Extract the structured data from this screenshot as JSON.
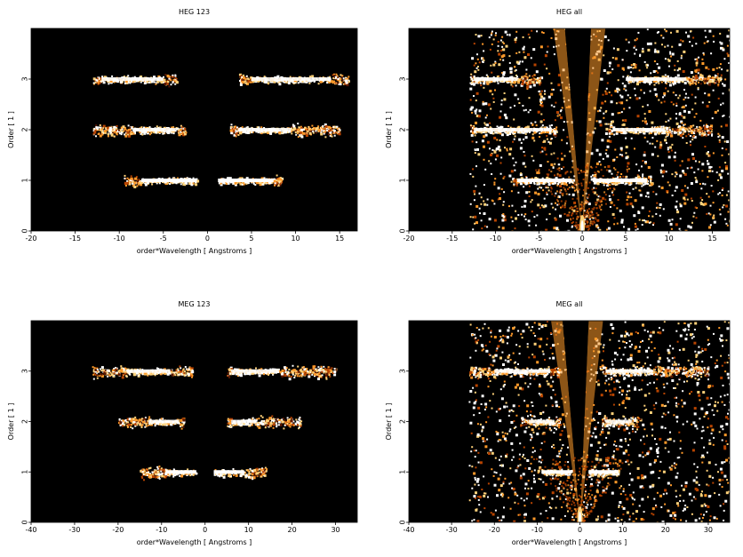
{
  "chart_data": [
    {
      "type": "heatmap",
      "title": "HEG 123",
      "xlabel": "order*Wavelength [ Angstroms ]",
      "ylabel": "Order [ 1 ]",
      "xlim": [
        -20,
        17
      ],
      "ylim": [
        0,
        4
      ],
      "xticks": [
        -20,
        -15,
        -10,
        -5,
        0,
        5,
        10,
        15
      ],
      "yticks": [
        0,
        1,
        2,
        3
      ],
      "background": "#000000",
      "bands": [
        {
          "order": 1,
          "x_start": -9.5,
          "x_end": -1.2,
          "core_start": -7.5,
          "core_end": -1.2
        },
        {
          "order": 1,
          "x_start": 1.2,
          "x_end": 8.5,
          "core_start": 1.2,
          "core_end": 7.5
        },
        {
          "order": 2,
          "x_start": -13,
          "x_end": -2.5,
          "core_start": -8.5,
          "core_end": -3.5
        },
        {
          "order": 2,
          "x_start": 2.5,
          "x_end": 15,
          "core_start": 3.5,
          "core_end": 9.5
        },
        {
          "order": 3,
          "x_start": -13,
          "x_end": -3.5,
          "core_start": -12,
          "core_end": -5
        },
        {
          "order": 3,
          "x_start": 3.5,
          "x_end": 16,
          "core_start": 5,
          "core_end": 14
        }
      ],
      "wedge": false
    },
    {
      "type": "heatmap",
      "title": "HEG all",
      "xlabel": "order*Wavelength [ Angstroms ]",
      "ylabel": "Order [ 1 ]",
      "xlim": [
        -20,
        17
      ],
      "ylim": [
        0,
        4
      ],
      "xticks": [
        -20,
        -15,
        -10,
        -5,
        0,
        5,
        10,
        15
      ],
      "yticks": [
        0,
        1,
        2,
        3
      ],
      "background": "#000000",
      "bands": [
        {
          "order": 1,
          "x_start": -8,
          "x_end": -1.2,
          "core_start": -7.5,
          "core_end": -1.2
        },
        {
          "order": 1,
          "x_start": 1.2,
          "x_end": 8,
          "core_start": 1.2,
          "core_end": 7.5
        },
        {
          "order": 2,
          "x_start": -13,
          "x_end": -3,
          "core_start": -12.5,
          "core_end": -3.5
        },
        {
          "order": 2,
          "x_start": 3,
          "x_end": 15,
          "core_start": 3.5,
          "core_end": 9.5
        },
        {
          "order": 3,
          "x_start": -13,
          "x_end": -5,
          "core_start": -12.5,
          "core_end": -7.5
        },
        {
          "order": 3,
          "x_start": 5,
          "x_end": 16,
          "core_start": 5,
          "core_end": 12
        }
      ],
      "wedge": true,
      "noise_x_range": [
        -13,
        17
      ]
    },
    {
      "type": "heatmap",
      "title": "MEG 123",
      "xlabel": "order*Wavelength [ Angstroms ]",
      "ylabel": "Order [ 1 ]",
      "xlim": [
        -40,
        35
      ],
      "ylim": [
        0,
        4
      ],
      "xticks": [
        -40,
        -30,
        -20,
        -10,
        0,
        10,
        20,
        30
      ],
      "yticks": [
        0,
        1,
        2,
        3
      ],
      "background": "#000000",
      "bands": [
        {
          "order": 1,
          "x_start": -15,
          "x_end": -2,
          "core_start": -9,
          "core_end": -2
        },
        {
          "order": 1,
          "x_start": 2,
          "x_end": 14,
          "core_start": 2,
          "core_end": 9
        },
        {
          "order": 2,
          "x_start": -20,
          "x_end": -5,
          "core_start": -13,
          "core_end": -6
        },
        {
          "order": 2,
          "x_start": 5,
          "x_end": 22,
          "core_start": 6,
          "core_end": 12
        },
        {
          "order": 3,
          "x_start": -26,
          "x_end": -3,
          "core_start": -18,
          "core_end": -8
        },
        {
          "order": 3,
          "x_start": 5,
          "x_end": 30,
          "core_start": 6,
          "core_end": 17
        }
      ],
      "wedge": false
    },
    {
      "type": "heatmap",
      "title": "MEG all",
      "xlabel": "order*Wavelength [ Angstroms ]",
      "ylabel": "Order [ 1 ]",
      "xlim": [
        -40,
        35
      ],
      "ylim": [
        0,
        4
      ],
      "xticks": [
        -40,
        -30,
        -20,
        -10,
        0,
        10,
        20,
        30
      ],
      "yticks": [
        0,
        1,
        2,
        3
      ],
      "background": "#000000",
      "bands": [
        {
          "order": 1,
          "x_start": -9,
          "x_end": -2,
          "core_start": -9,
          "core_end": -2
        },
        {
          "order": 1,
          "x_start": 2,
          "x_end": 9,
          "core_start": 2,
          "core_end": 9
        },
        {
          "order": 2,
          "x_start": -14,
          "x_end": -5,
          "core_start": -12,
          "core_end": -6
        },
        {
          "order": 2,
          "x_start": 5,
          "x_end": 14,
          "core_start": 6,
          "core_end": 12
        },
        {
          "order": 3,
          "x_start": -26,
          "x_end": -5,
          "core_start": -20,
          "core_end": -7
        },
        {
          "order": 3,
          "x_start": 5,
          "x_end": 30,
          "core_start": 6,
          "core_end": 17
        }
      ],
      "wedge": true,
      "noise_x_range": [
        -26,
        35
      ]
    }
  ],
  "colors": {
    "core": "#ffffff",
    "hot": "#ffd27a",
    "warm": "#ff9a2a",
    "dim": "#b84400",
    "faint": "#5a1800"
  }
}
